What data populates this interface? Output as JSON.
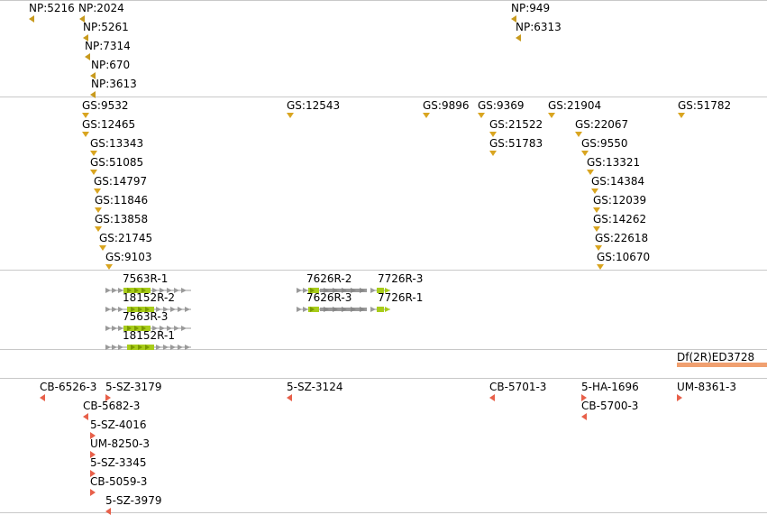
{
  "colors": {
    "np": "#c89a1e",
    "gs": "#d9a520",
    "rna_exon": "#a8cc1a",
    "rna_intron": "#9a9a9a",
    "deletion": "#f0a070",
    "insertion": "#e8604a",
    "separator": "#c8c8c8"
  },
  "tracks": {
    "np": [
      {
        "label": "NP:5216"
      },
      {
        "label": "NP:2024"
      },
      {
        "label": "NP:5261"
      },
      {
        "label": "NP:7314"
      },
      {
        "label": "NP:670"
      },
      {
        "label": "NP:3613"
      },
      {
        "label": "NP:949"
      },
      {
        "label": "NP:6313"
      }
    ],
    "gs": [
      {
        "label": "GS:9532"
      },
      {
        "label": "GS:12465"
      },
      {
        "label": "GS:13343"
      },
      {
        "label": "GS:51085"
      },
      {
        "label": "GS:14797"
      },
      {
        "label": "GS:11846"
      },
      {
        "label": "GS:13858"
      },
      {
        "label": "GS:21745"
      },
      {
        "label": "GS:9103"
      },
      {
        "label": "GS:12543"
      },
      {
        "label": "GS:9896"
      },
      {
        "label": "GS:9369"
      },
      {
        "label": "GS:21522"
      },
      {
        "label": "GS:51783"
      },
      {
        "label": "GS:21904"
      },
      {
        "label": "GS:22067"
      },
      {
        "label": "GS:9550"
      },
      {
        "label": "GS:13321"
      },
      {
        "label": "GS:14384"
      },
      {
        "label": "GS:12039"
      },
      {
        "label": "GS:14262"
      },
      {
        "label": "GS:22618"
      },
      {
        "label": "GS:10670"
      },
      {
        "label": "GS:51782"
      }
    ],
    "transcripts": [
      {
        "label": "7563R-1"
      },
      {
        "label": "18152R-2"
      },
      {
        "label": "7563R-3"
      },
      {
        "label": "18152R-1"
      },
      {
        "label": "7626R-2"
      },
      {
        "label": "7726R-3"
      },
      {
        "label": "7626R-3"
      },
      {
        "label": "7726R-1"
      }
    ],
    "deletions": [
      {
        "label": "Df(2R)ED3728"
      }
    ],
    "insertions": [
      {
        "label": "CB-6526-3"
      },
      {
        "label": "5-SZ-3179"
      },
      {
        "label": "CB-5682-3"
      },
      {
        "label": "5-SZ-4016"
      },
      {
        "label": "UM-8250-3"
      },
      {
        "label": "5-SZ-3345"
      },
      {
        "label": "CB-5059-3"
      },
      {
        "label": "5-SZ-3979"
      },
      {
        "label": "5-SZ-3124"
      },
      {
        "label": "CB-5701-3"
      },
      {
        "label": "5-HA-1696"
      },
      {
        "label": "CB-5700-3"
      },
      {
        "label": "UM-8361-3"
      }
    ]
  }
}
